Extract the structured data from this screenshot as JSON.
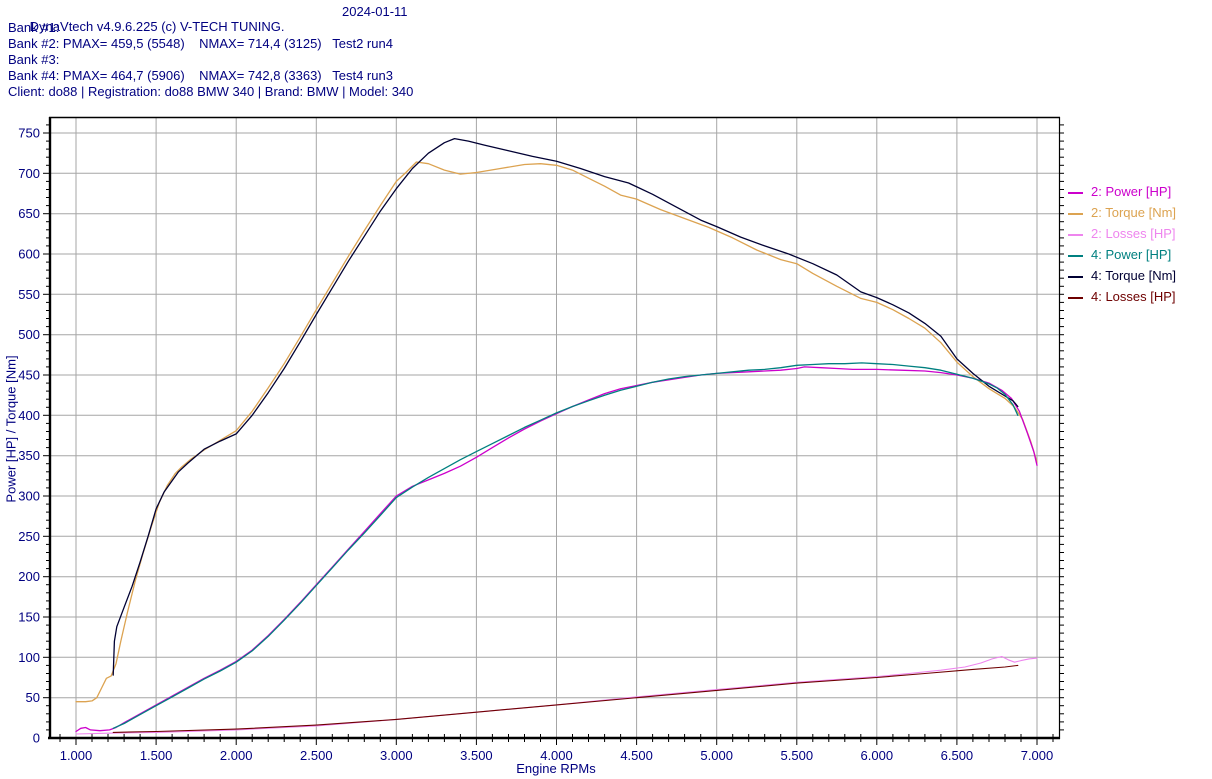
{
  "header": {
    "title": "DynaVtech v4.9.6.225 (c) V-TECH TUNING.",
    "date": "2024-01-11",
    "bank_lines": [
      "Bank #1:",
      "Bank #2: PMAX= 459,5 (5548)    NMAX= 714,4 (3125)   Test2 run4",
      "Bank #3:",
      "Bank #4: PMAX= 464,7 (5906)    NMAX= 742,8 (3363)   Test4 run3"
    ],
    "client_line": "Client: do88 | Registration: do88 BMW 340 | Brand: BMW | Model: 340",
    "text_color": "#000080"
  },
  "chart_data": {
    "type": "line",
    "xlabel": "Engine RPMs",
    "ylabel": "Power [HP] / Torque [Nm]",
    "xlim": [
      870,
      7145
    ],
    "ylim": [
      0,
      770
    ],
    "x_major_step": 500,
    "x_minor_step": 100,
    "y_major_step": 50,
    "y_minor_step": 10,
    "grid": true,
    "grid_color": "#a6a6a6",
    "axis_text_color": "#000080",
    "legend_position": "right",
    "x_tick_labels": [
      "1.000",
      "1.500",
      "2.000",
      "2.500",
      "3.000",
      "3.500",
      "4.000",
      "4.500",
      "5.000",
      "5.500",
      "6.000",
      "6.500",
      "7.000"
    ],
    "x_tick_values": [
      1000,
      1500,
      2000,
      2500,
      3000,
      3500,
      4000,
      4500,
      5000,
      5500,
      6000,
      6500,
      7000
    ],
    "y_tick_values": [
      0,
      50,
      100,
      150,
      200,
      250,
      300,
      350,
      400,
      450,
      500,
      550,
      600,
      650,
      700,
      750
    ],
    "peaks": {
      "bank2": {
        "pmax_hp": "459,5",
        "pmax_rpm": 5548,
        "nmax_nm": "714,4",
        "nmax_rpm": 3125,
        "run": "Test2 run4"
      },
      "bank4": {
        "pmax_hp": "464,7",
        "pmax_rpm": 5906,
        "nmax_nm": "742,8",
        "nmax_rpm": 3363,
        "run": "Test4 run3"
      }
    },
    "draw_order": [
      2,
      1,
      0,
      5,
      4,
      3
    ],
    "series": [
      {
        "id": "2-power",
        "label": "2: Power [HP]",
        "color": "#CC00CC",
        "width": 1.3,
        "points": [
          [
            1000,
            8
          ],
          [
            1030,
            12
          ],
          [
            1060,
            13
          ],
          [
            1090,
            10
          ],
          [
            1150,
            9
          ],
          [
            1210,
            10
          ],
          [
            1250,
            13
          ],
          [
            1300,
            19
          ],
          [
            1400,
            30
          ],
          [
            1500,
            41
          ],
          [
            1600,
            52
          ],
          [
            1700,
            63
          ],
          [
            1800,
            74
          ],
          [
            1900,
            84
          ],
          [
            2000,
            95
          ],
          [
            2100,
            109
          ],
          [
            2200,
            127
          ],
          [
            2300,
            147
          ],
          [
            2400,
            168
          ],
          [
            2500,
            190
          ],
          [
            2600,
            212
          ],
          [
            2700,
            234
          ],
          [
            2800,
            256
          ],
          [
            2900,
            278
          ],
          [
            3000,
            300
          ],
          [
            3100,
            312
          ],
          [
            3200,
            320
          ],
          [
            3300,
            328
          ],
          [
            3400,
            337
          ],
          [
            3500,
            348
          ],
          [
            3600,
            360
          ],
          [
            3700,
            372
          ],
          [
            3800,
            383
          ],
          [
            3900,
            393
          ],
          [
            4000,
            402
          ],
          [
            4100,
            411
          ],
          [
            4200,
            419
          ],
          [
            4300,
            427
          ],
          [
            4400,
            433
          ],
          [
            4500,
            437
          ],
          [
            4600,
            441
          ],
          [
            4700,
            444
          ],
          [
            4800,
            447
          ],
          [
            4900,
            450
          ],
          [
            5000,
            452
          ],
          [
            5100,
            453
          ],
          [
            5200,
            454
          ],
          [
            5300,
            455
          ],
          [
            5400,
            456
          ],
          [
            5500,
            458
          ],
          [
            5548,
            460
          ],
          [
            5650,
            459
          ],
          [
            5750,
            458
          ],
          [
            5850,
            457
          ],
          [
            6000,
            457
          ],
          [
            6150,
            456
          ],
          [
            6300,
            455
          ],
          [
            6400,
            453
          ],
          [
            6500,
            450
          ],
          [
            6600,
            446
          ],
          [
            6700,
            440
          ],
          [
            6780,
            431
          ],
          [
            6840,
            421
          ],
          [
            6890,
            405
          ],
          [
            6940,
            378
          ],
          [
            6980,
            355
          ],
          [
            7000,
            338
          ]
        ]
      },
      {
        "id": "2-torque",
        "label": "2: Torque [Nm]",
        "color": "#DCA351",
        "width": 1.3,
        "points": [
          [
            1000,
            45
          ],
          [
            1060,
            45
          ],
          [
            1100,
            46
          ],
          [
            1130,
            50
          ],
          [
            1160,
            62
          ],
          [
            1190,
            74
          ],
          [
            1220,
            77
          ],
          [
            1250,
            92
          ],
          [
            1280,
            120
          ],
          [
            1320,
            155
          ],
          [
            1370,
            195
          ],
          [
            1420,
            230
          ],
          [
            1470,
            262
          ],
          [
            1520,
            292
          ],
          [
            1570,
            313
          ],
          [
            1620,
            328
          ],
          [
            1660,
            336
          ],
          [
            1720,
            346
          ],
          [
            1800,
            357
          ],
          [
            1900,
            369
          ],
          [
            2000,
            381
          ],
          [
            2100,
            405
          ],
          [
            2200,
            434
          ],
          [
            2300,
            464
          ],
          [
            2400,
            497
          ],
          [
            2500,
            531
          ],
          [
            2600,
            564
          ],
          [
            2700,
            597
          ],
          [
            2800,
            629
          ],
          [
            2900,
            660
          ],
          [
            3000,
            690
          ],
          [
            3060,
            701
          ],
          [
            3125,
            714
          ],
          [
            3200,
            712
          ],
          [
            3300,
            704
          ],
          [
            3400,
            699
          ],
          [
            3500,
            701
          ],
          [
            3650,
            706
          ],
          [
            3800,
            711
          ],
          [
            3900,
            712
          ],
          [
            4000,
            710
          ],
          [
            4100,
            704
          ],
          [
            4200,
            694
          ],
          [
            4300,
            684
          ],
          [
            4400,
            673
          ],
          [
            4500,
            668
          ],
          [
            4650,
            655
          ],
          [
            4800,
            644
          ],
          [
            4950,
            633
          ],
          [
            5100,
            620
          ],
          [
            5250,
            605
          ],
          [
            5400,
            593
          ],
          [
            5500,
            588
          ],
          [
            5600,
            576
          ],
          [
            5750,
            560
          ],
          [
            5900,
            545
          ],
          [
            6000,
            540
          ],
          [
            6100,
            531
          ],
          [
            6200,
            520
          ],
          [
            6300,
            508
          ],
          [
            6400,
            490
          ],
          [
            6500,
            466
          ],
          [
            6600,
            448
          ],
          [
            6700,
            433
          ],
          [
            6800,
            421
          ],
          [
            6860,
            410
          ],
          [
            6910,
            395
          ],
          [
            6960,
            368
          ],
          [
            7000,
            342
          ]
        ]
      },
      {
        "id": "2-losses",
        "label": "2: Losses [HP]",
        "color": "#EE85EE",
        "width": 1.1,
        "points": [
          [
            1000,
            5
          ],
          [
            1200,
            6
          ],
          [
            1500,
            7
          ],
          [
            2000,
            10
          ],
          [
            2500,
            15
          ],
          [
            3000,
            23
          ],
          [
            3500,
            32
          ],
          [
            4000,
            41
          ],
          [
            4500,
            51
          ],
          [
            5000,
            60
          ],
          [
            5500,
            69
          ],
          [
            6000,
            76
          ],
          [
            6200,
            80
          ],
          [
            6400,
            84
          ],
          [
            6550,
            88
          ],
          [
            6650,
            93
          ],
          [
            6720,
            98
          ],
          [
            6780,
            101
          ],
          [
            6820,
            97
          ],
          [
            6860,
            94
          ],
          [
            6900,
            96
          ],
          [
            6950,
            98
          ],
          [
            7000,
            99
          ]
        ]
      },
      {
        "id": "4-power",
        "label": "4: Power [HP]",
        "color": "#008080",
        "width": 1.3,
        "points": [
          [
            1232,
            12
          ],
          [
            1300,
            18
          ],
          [
            1400,
            29
          ],
          [
            1500,
            40
          ],
          [
            1600,
            51
          ],
          [
            1700,
            62
          ],
          [
            1800,
            73
          ],
          [
            1900,
            83
          ],
          [
            2000,
            94
          ],
          [
            2100,
            108
          ],
          [
            2200,
            126
          ],
          [
            2300,
            146
          ],
          [
            2400,
            167
          ],
          [
            2500,
            189
          ],
          [
            2600,
            211
          ],
          [
            2700,
            233
          ],
          [
            2800,
            254
          ],
          [
            2900,
            276
          ],
          [
            3000,
            298
          ],
          [
            3100,
            311
          ],
          [
            3200,
            323
          ],
          [
            3300,
            334
          ],
          [
            3400,
            345
          ],
          [
            3500,
            355
          ],
          [
            3600,
            365
          ],
          [
            3700,
            375
          ],
          [
            3800,
            385
          ],
          [
            3900,
            394
          ],
          [
            4000,
            403
          ],
          [
            4100,
            411
          ],
          [
            4200,
            418
          ],
          [
            4300,
            425
          ],
          [
            4400,
            431
          ],
          [
            4500,
            436
          ],
          [
            4600,
            441
          ],
          [
            4700,
            445
          ],
          [
            4800,
            448
          ],
          [
            4900,
            450
          ],
          [
            5000,
            452
          ],
          [
            5100,
            454
          ],
          [
            5200,
            456
          ],
          [
            5300,
            457
          ],
          [
            5400,
            459
          ],
          [
            5500,
            462
          ],
          [
            5600,
            463
          ],
          [
            5700,
            464
          ],
          [
            5800,
            464
          ],
          [
            5906,
            465
          ],
          [
            6000,
            464
          ],
          [
            6100,
            463
          ],
          [
            6200,
            461
          ],
          [
            6300,
            459
          ],
          [
            6400,
            456
          ],
          [
            6500,
            451
          ],
          [
            6600,
            446
          ],
          [
            6700,
            439
          ],
          [
            6750,
            434
          ],
          [
            6800,
            426
          ],
          [
            6850,
            413
          ],
          [
            6880,
            400
          ]
        ]
      },
      {
        "id": "4-torque",
        "label": "4: Torque [Nm]",
        "color": "#000033",
        "width": 1.3,
        "points": [
          [
            1232,
            78
          ],
          [
            1240,
            120
          ],
          [
            1255,
            138
          ],
          [
            1300,
            162
          ],
          [
            1350,
            188
          ],
          [
            1400,
            218
          ],
          [
            1450,
            250
          ],
          [
            1500,
            284
          ],
          [
            1550,
            305
          ],
          [
            1600,
            319
          ],
          [
            1640,
            330
          ],
          [
            1700,
            341
          ],
          [
            1800,
            358
          ],
          [
            1900,
            368
          ],
          [
            2000,
            377
          ],
          [
            2100,
            400
          ],
          [
            2200,
            428
          ],
          [
            2300,
            458
          ],
          [
            2400,
            491
          ],
          [
            2500,
            525
          ],
          [
            2600,
            558
          ],
          [
            2700,
            591
          ],
          [
            2800,
            622
          ],
          [
            2900,
            653
          ],
          [
            3000,
            681
          ],
          [
            3100,
            706
          ],
          [
            3200,
            725
          ],
          [
            3300,
            738
          ],
          [
            3363,
            743
          ],
          [
            3450,
            740
          ],
          [
            3550,
            735
          ],
          [
            3700,
            728
          ],
          [
            3850,
            721
          ],
          [
            4000,
            715
          ],
          [
            4150,
            706
          ],
          [
            4300,
            696
          ],
          [
            4450,
            688
          ],
          [
            4600,
            674
          ],
          [
            4750,
            658
          ],
          [
            4900,
            642
          ],
          [
            5000,
            634
          ],
          [
            5150,
            621
          ],
          [
            5300,
            610
          ],
          [
            5450,
            600
          ],
          [
            5600,
            588
          ],
          [
            5750,
            574
          ],
          [
            5900,
            553
          ],
          [
            6000,
            546
          ],
          [
            6100,
            537
          ],
          [
            6200,
            527
          ],
          [
            6300,
            514
          ],
          [
            6400,
            498
          ],
          [
            6500,
            470
          ],
          [
            6600,
            452
          ],
          [
            6700,
            436
          ],
          [
            6800,
            424
          ],
          [
            6850,
            418
          ],
          [
            6880,
            411
          ]
        ]
      },
      {
        "id": "4-losses",
        "label": "4: Losses [HP]",
        "color": "#6E0000",
        "width": 1.1,
        "points": [
          [
            1232,
            7
          ],
          [
            1500,
            8
          ],
          [
            2000,
            11
          ],
          [
            2500,
            16
          ],
          [
            3000,
            23
          ],
          [
            3500,
            32
          ],
          [
            4000,
            41
          ],
          [
            4500,
            50
          ],
          [
            5000,
            59
          ],
          [
            5500,
            68
          ],
          [
            6000,
            75
          ],
          [
            6300,
            80
          ],
          [
            6600,
            85
          ],
          [
            6800,
            88
          ],
          [
            6880,
            90
          ]
        ]
      }
    ]
  }
}
